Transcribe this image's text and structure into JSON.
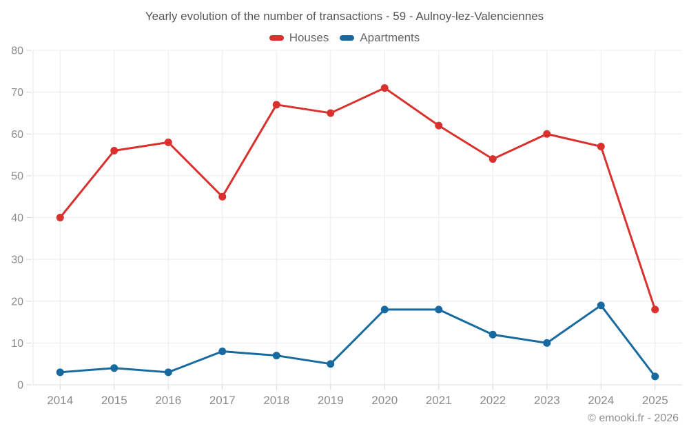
{
  "page": {
    "footer": "© emooki.fr - 2026"
  },
  "chart_data": {
    "type": "line",
    "title": "Yearly evolution of the number of transactions - 59 - Aulnoy-lez-Valenciennes",
    "categories": [
      "2014",
      "2015",
      "2016",
      "2017",
      "2018",
      "2019",
      "2020",
      "2021",
      "2022",
      "2023",
      "2024",
      "2025"
    ],
    "series": [
      {
        "name": "Houses",
        "color": "#d8312e",
        "values": [
          40,
          56,
          58,
          45,
          67,
          65,
          71,
          62,
          54,
          60,
          57,
          18
        ]
      },
      {
        "name": "Apartments",
        "color": "#176a9f",
        "values": [
          3,
          4,
          3,
          8,
          7,
          5,
          18,
          18,
          12,
          10,
          19,
          2
        ]
      }
    ],
    "xlabel": "",
    "ylabel": "",
    "ylim": [
      0,
      80
    ],
    "ytick_step": 10,
    "yticks": [
      0,
      10,
      20,
      30,
      40,
      50,
      60,
      70,
      80
    ],
    "grid": true,
    "legend_position": "top",
    "grid_color": "#ececec",
    "tick_color": "#d6d6d6",
    "axis_label_color": "#8b8b8b"
  }
}
